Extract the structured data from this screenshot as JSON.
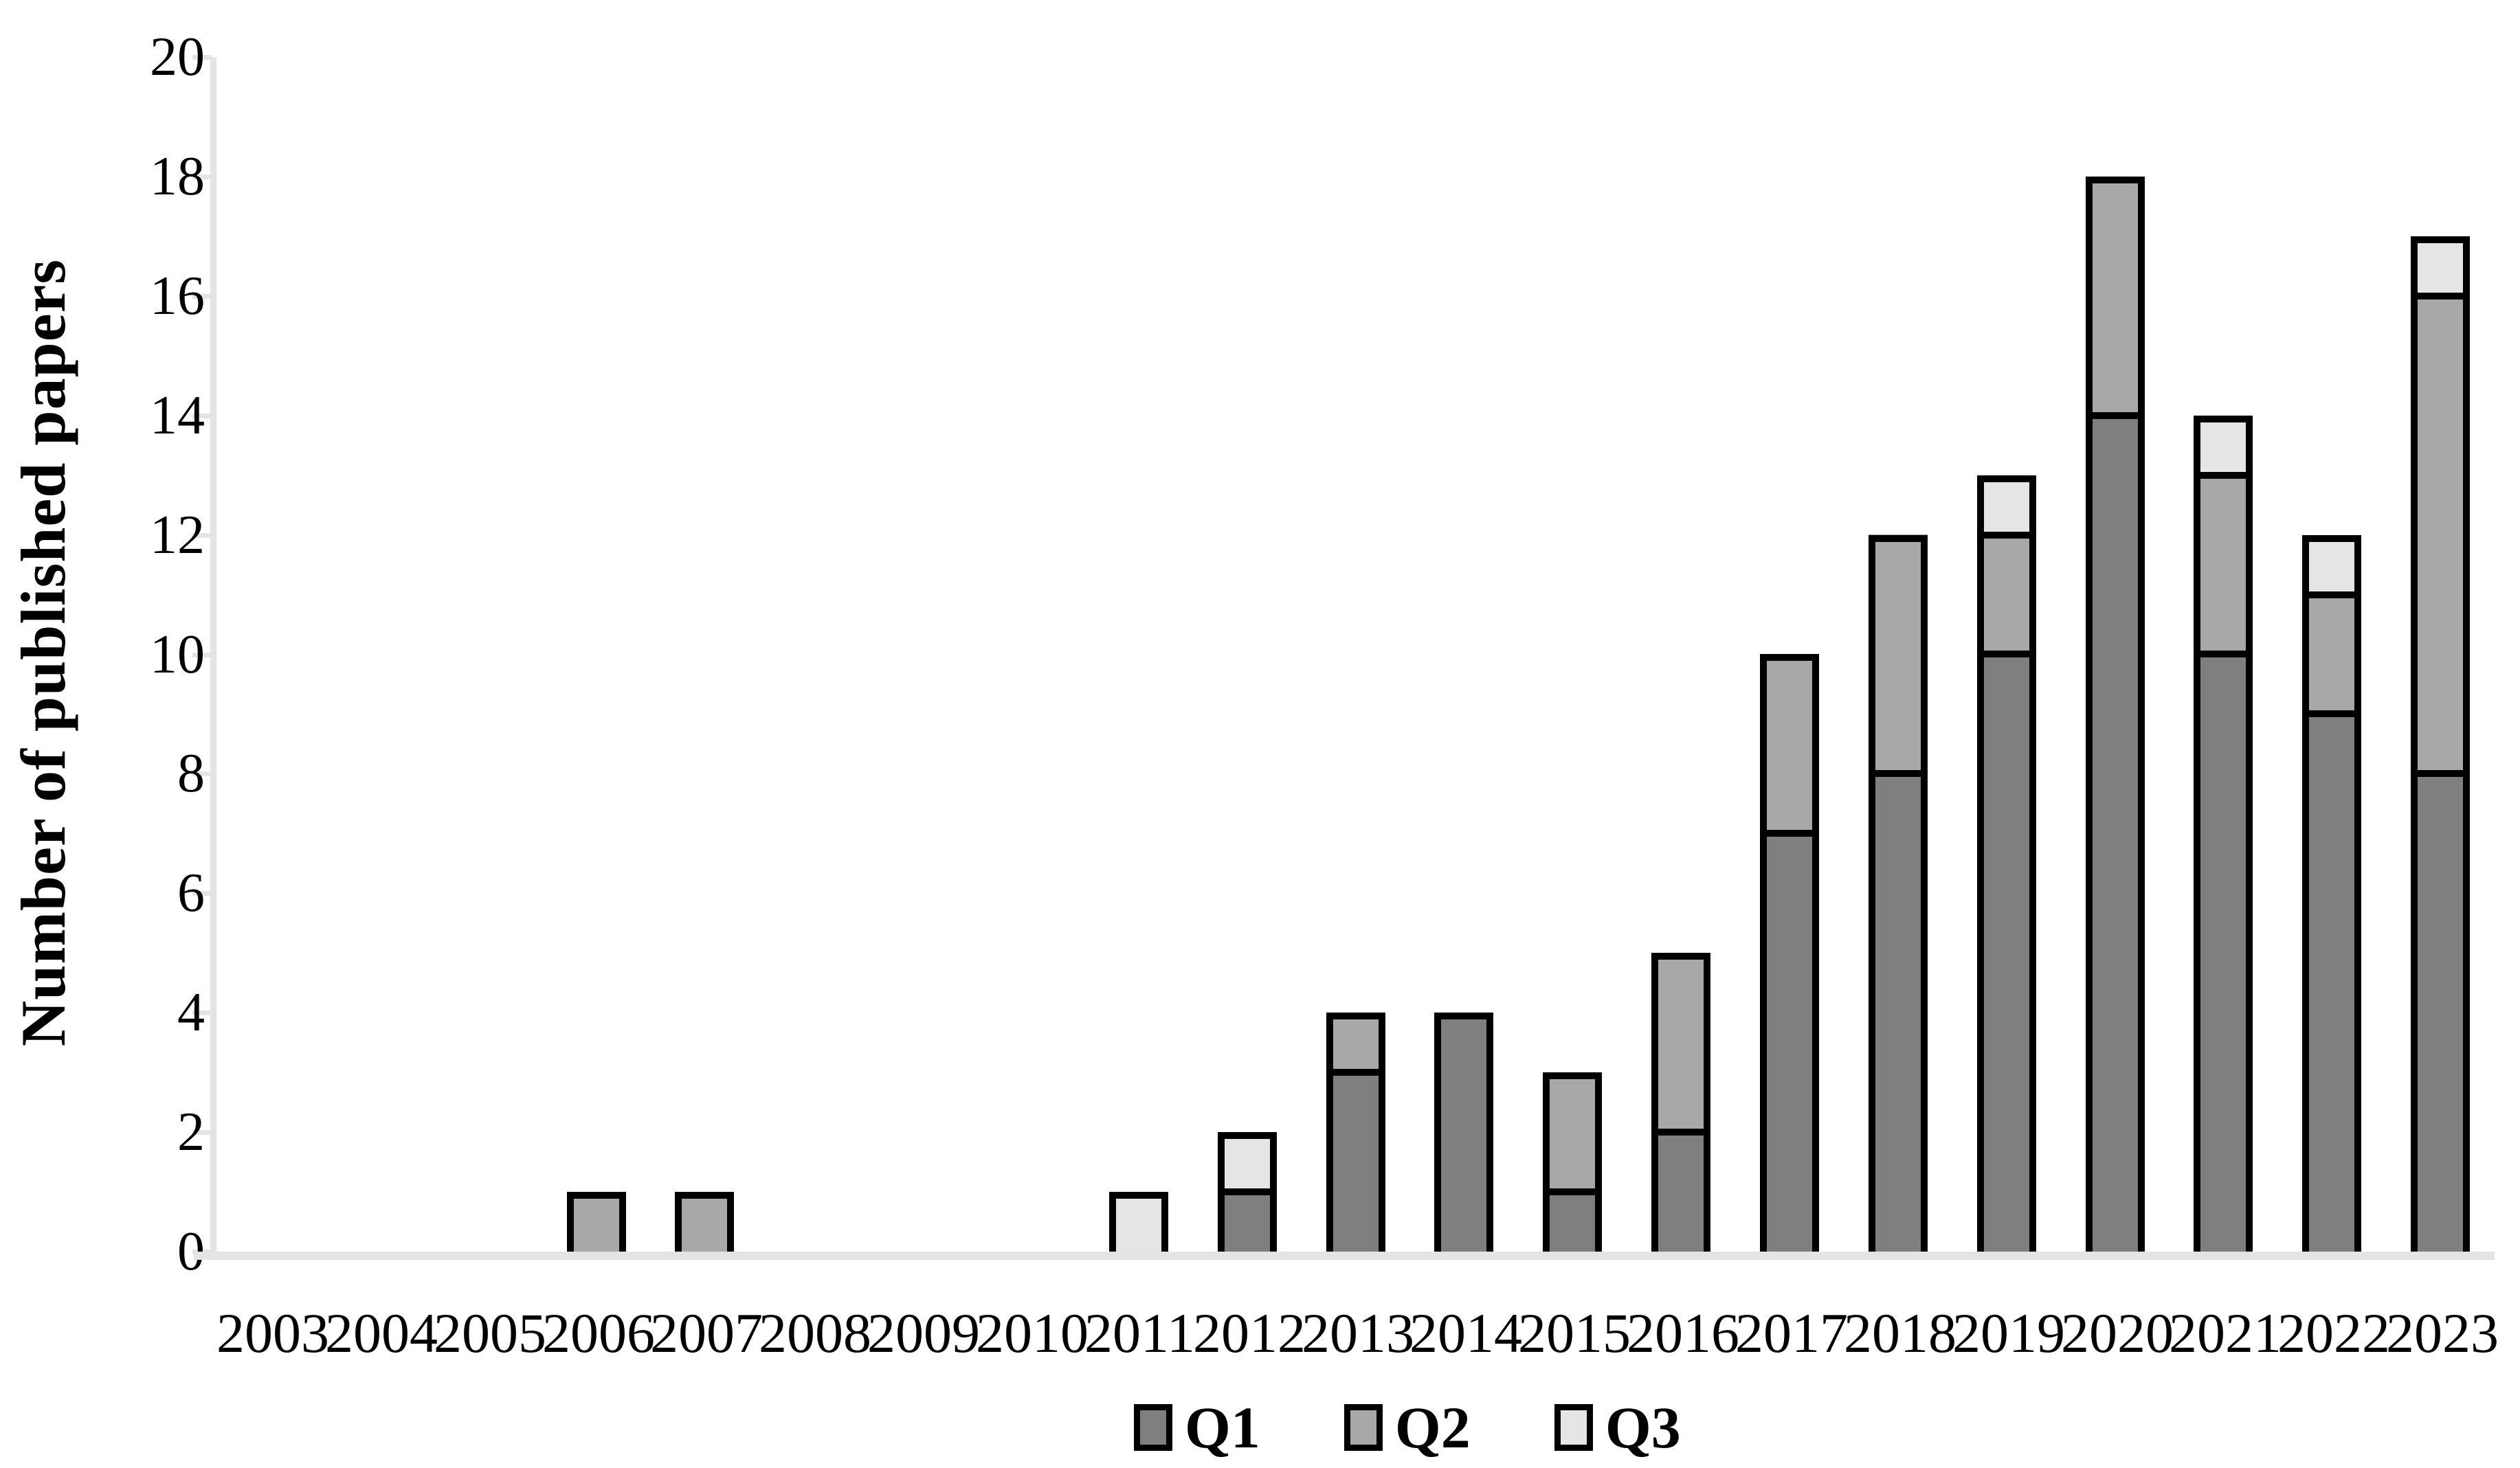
{
  "chart_data": {
    "type": "bar",
    "stacked": true,
    "title": "",
    "xlabel": "",
    "ylabel": "Number of published papers",
    "ylim": [
      0,
      20
    ],
    "ytick_step": 2,
    "grid": false,
    "legend_position": "bottom-center",
    "categories": [
      "2003",
      "2004",
      "2005",
      "2006",
      "2007",
      "2008",
      "2009",
      "2010",
      "2011",
      "2012",
      "2013",
      "2014",
      "2015",
      "2016",
      "2017",
      "2018",
      "2019",
      "2020",
      "2021",
      "2022",
      "2023"
    ],
    "series": [
      {
        "name": "Q1",
        "color": "#7f7f7f",
        "values": [
          0,
          0,
          0,
          0,
          0,
          0,
          0,
          0,
          0,
          1,
          3,
          4,
          1,
          2,
          7,
          8,
          10,
          14,
          10,
          9,
          8
        ]
      },
      {
        "name": "Q2",
        "color": "#a8a8a8",
        "values": [
          0,
          0,
          0,
          1,
          1,
          0,
          0,
          0,
          0,
          0,
          1,
          0,
          2,
          3,
          3,
          4,
          2,
          4,
          3,
          2,
          8
        ]
      },
      {
        "name": "Q3",
        "color": "#e5e5e5",
        "values": [
          0,
          0,
          0,
          0,
          0,
          0,
          0,
          0,
          1,
          1,
          0,
          0,
          0,
          0,
          0,
          0,
          1,
          0,
          1,
          1,
          1
        ]
      }
    ]
  },
  "axes": {
    "y_tick_labels": [
      "0",
      "2",
      "4",
      "6",
      "8",
      "10",
      "12",
      "14",
      "16",
      "18",
      "20"
    ]
  },
  "legend": {
    "items": [
      {
        "label": "Q1",
        "color": "#7f7f7f"
      },
      {
        "label": "Q2",
        "color": "#a8a8a8"
      },
      {
        "label": "Q3",
        "color": "#e5e5e5"
      }
    ]
  },
  "colors": {
    "background": "#ffffff",
    "axis_line": "#e4e4e4",
    "bar_border": "#000000",
    "text": "#000000"
  }
}
